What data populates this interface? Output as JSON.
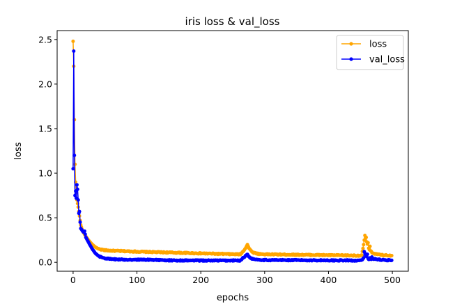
{
  "chart_data": {
    "type": "line",
    "title": "iris loss & val_loss",
    "xlabel": "epochs",
    "ylabel": "loss",
    "xlim": [
      -25,
      525
    ],
    "ylim": [
      -0.1,
      2.6
    ],
    "xticks": [
      0,
      100,
      200,
      300,
      400,
      500
    ],
    "yticks": [
      0.0,
      0.5,
      1.0,
      1.5,
      2.0,
      2.5
    ],
    "ytick_labels": [
      "0.0",
      "0.5",
      "1.0",
      "1.5",
      "2.0",
      "2.5"
    ],
    "grid": false,
    "legend_position": "top-right",
    "n_epochs": 500,
    "series": [
      {
        "name": "loss",
        "color": "#FFA500",
        "marker": "circle",
        "keypoints": [
          [
            0,
            2.48
          ],
          [
            1,
            2.2
          ],
          [
            2,
            1.6
          ],
          [
            3,
            1.1
          ],
          [
            4,
            0.9
          ],
          [
            5,
            0.78
          ],
          [
            6,
            0.7
          ],
          [
            8,
            0.62
          ],
          [
            10,
            0.52
          ],
          [
            12,
            0.42
          ],
          [
            15,
            0.35
          ],
          [
            20,
            0.29
          ],
          [
            25,
            0.24
          ],
          [
            30,
            0.2
          ],
          [
            35,
            0.17
          ],
          [
            40,
            0.15
          ],
          [
            50,
            0.135
          ],
          [
            60,
            0.13
          ],
          [
            100,
            0.12
          ],
          [
            150,
            0.11
          ],
          [
            200,
            0.1
          ],
          [
            255,
            0.09
          ],
          [
            262,
            0.09
          ],
          [
            266,
            0.12
          ],
          [
            270,
            0.16
          ],
          [
            273,
            0.2
          ],
          [
            276,
            0.15
          ],
          [
            282,
            0.11
          ],
          [
            290,
            0.095
          ],
          [
            300,
            0.09
          ],
          [
            350,
            0.085
          ],
          [
            400,
            0.08
          ],
          [
            452,
            0.075
          ],
          [
            455,
            0.2
          ],
          [
            457,
            0.3
          ],
          [
            459,
            0.25
          ],
          [
            461,
            0.2
          ],
          [
            464,
            0.14
          ],
          [
            468,
            0.11
          ],
          [
            475,
            0.09
          ],
          [
            485,
            0.08
          ],
          [
            500,
            0.075
          ]
        ],
        "spikes": [
          [
            459,
            0.28
          ],
          [
            462,
            0.22
          ],
          [
            465,
            0.18
          ]
        ]
      },
      {
        "name": "val_loss",
        "color": "#0000FF",
        "marker": "circle",
        "keypoints": [
          [
            0,
            1.05
          ],
          [
            1,
            2.37
          ],
          [
            2,
            1.2
          ],
          [
            3,
            0.75
          ],
          [
            4,
            0.8
          ],
          [
            5,
            0.72
          ],
          [
            6,
            0.87
          ],
          [
            7,
            0.82
          ],
          [
            8,
            0.7
          ],
          [
            9,
            0.55
          ],
          [
            10,
            0.57
          ],
          [
            11,
            0.45
          ],
          [
            12,
            0.38
          ],
          [
            14,
            0.36
          ],
          [
            16,
            0.34
          ],
          [
            18,
            0.35
          ],
          [
            20,
            0.28
          ],
          [
            23,
            0.24
          ],
          [
            26,
            0.2
          ],
          [
            30,
            0.15
          ],
          [
            35,
            0.1
          ],
          [
            40,
            0.07
          ],
          [
            45,
            0.055
          ],
          [
            50,
            0.045
          ],
          [
            60,
            0.035
          ],
          [
            80,
            0.03
          ],
          [
            130,
            0.028
          ],
          [
            140,
            0.022
          ],
          [
            200,
            0.02
          ],
          [
            262,
            0.02
          ],
          [
            266,
            0.05
          ],
          [
            270,
            0.07
          ],
          [
            273,
            0.09
          ],
          [
            276,
            0.06
          ],
          [
            280,
            0.04
          ],
          [
            290,
            0.03
          ],
          [
            300,
            0.025
          ],
          [
            400,
            0.022
          ],
          [
            452,
            0.02
          ],
          [
            455,
            0.05
          ],
          [
            457,
            0.1
          ],
          [
            460,
            0.06
          ],
          [
            463,
            0.03
          ],
          [
            470,
            0.04
          ],
          [
            480,
            0.03
          ],
          [
            500,
            0.02
          ]
        ],
        "spikes": [
          [
            456,
            0.12
          ],
          [
            461,
            0.09
          ],
          [
            465,
            0.05
          ],
          [
            468,
            0.06
          ]
        ]
      }
    ]
  }
}
